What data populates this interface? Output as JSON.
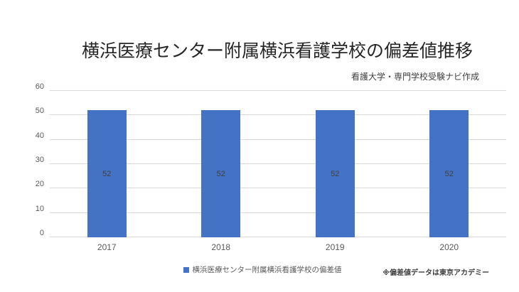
{
  "title": "横浜医療センター附属横浜看護学校の偏差値推移",
  "subtitle": "看護大学・専門学校受験ナビ作成",
  "footnote": "※偏差値データは東京アカデミー",
  "legend": {
    "label": "横浜医療センター附属横浜看護学校の偏差値",
    "color": "#4472C4"
  },
  "chart_data": {
    "type": "bar",
    "categories": [
      "2017",
      "2018",
      "2019",
      "2020"
    ],
    "values": [
      52,
      52,
      52,
      52
    ],
    "title": "横浜医療センター附属横浜看護学校の偏差値推移",
    "xlabel": "",
    "ylabel": "",
    "ylim": [
      0,
      60
    ],
    "ytick_step": 10,
    "bar_color": "#4472C4",
    "value_label_color": "#404040",
    "grid": true,
    "legend_position": "bottom"
  }
}
